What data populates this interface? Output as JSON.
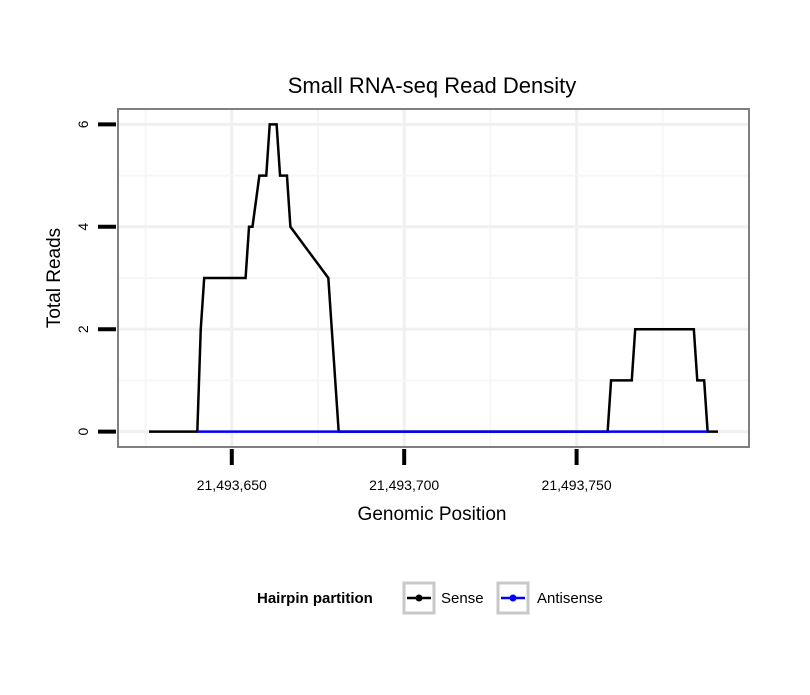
{
  "chart_data": {
    "type": "line",
    "title": "Small RNA-seq Read Density",
    "xlabel": "Genomic Position",
    "ylabel": "Total Reads",
    "xlim": [
      21493617,
      21493800
    ],
    "ylim": [
      -0.3,
      6.3
    ],
    "grid": true,
    "x_ticks": [
      {
        "value": 21493650,
        "label": "21,493,650"
      },
      {
        "value": 21493700,
        "label": "21,493,700"
      },
      {
        "value": 21493750,
        "label": "21,493,750"
      }
    ],
    "y_ticks": [
      {
        "value": 0,
        "label": "0"
      },
      {
        "value": 2,
        "label": "2"
      },
      {
        "value": 4,
        "label": "4"
      },
      {
        "value": 6,
        "label": "6"
      }
    ],
    "legend": {
      "title": "Hairpin partition",
      "position": "bottom"
    },
    "series": [
      {
        "name": "Sense",
        "color": "#000000",
        "x": [
          21493626,
          21493640,
          21493641,
          21493642,
          21493654,
          21493655,
          21493656,
          21493658,
          21493659,
          21493660,
          21493661,
          21493663,
          21493664,
          21493665,
          21493666,
          21493667,
          21493678,
          21493681,
          21493759,
          21493760,
          21493766,
          21493767,
          21493784,
          21493785,
          21493787,
          21493788,
          21493791
        ],
        "y": [
          0,
          0,
          2,
          3,
          3,
          4,
          4,
          5,
          5,
          5,
          6,
          6,
          5,
          5,
          5,
          4,
          3,
          0,
          0,
          1,
          1,
          2,
          2,
          1,
          1,
          0,
          0
        ]
      },
      {
        "name": "Antisense",
        "color": "#0000ff",
        "x": [
          21493640,
          21493681,
          21493759,
          21493788
        ],
        "y": [
          0,
          0,
          0,
          0
        ]
      }
    ]
  }
}
